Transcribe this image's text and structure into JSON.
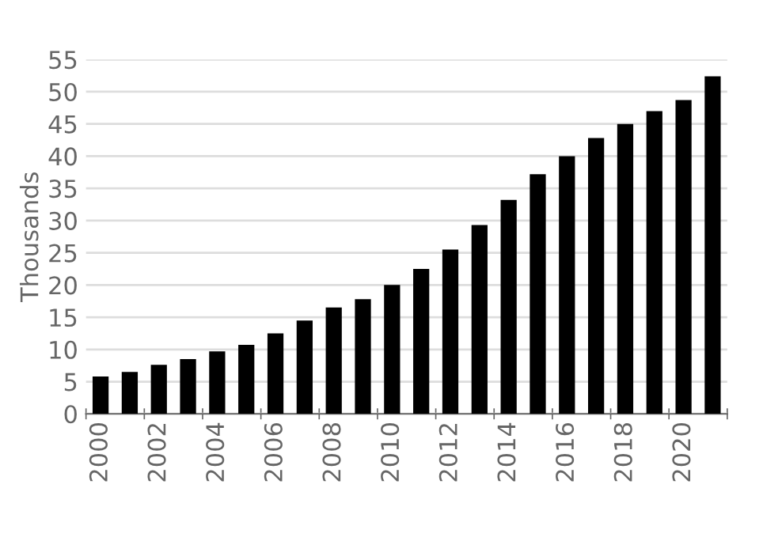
{
  "chart_data": {
    "type": "bar",
    "ylabel": "Thousands",
    "categories": [
      "2000",
      null,
      "2002",
      null,
      "2004",
      null,
      "2006",
      null,
      "2008",
      null,
      "2010",
      null,
      "2012",
      null,
      "2014",
      null,
      "2016",
      null,
      "2018",
      null,
      "2020",
      null
    ],
    "values": [
      5.8,
      6.5,
      7.6,
      8.5,
      9.7,
      10.7,
      12.5,
      14.5,
      16.5,
      17.8,
      20,
      22.5,
      25.5,
      29.3,
      33.2,
      37.2,
      40,
      42.8,
      45,
      47,
      48.7,
      52.4
    ],
    "color": "#000000",
    "ylim": [
      0,
      55
    ],
    "yticks": [
      0,
      5,
      10,
      15,
      20,
      25,
      30,
      35,
      40,
      45,
      50,
      55
    ],
    "grid": "y",
    "legend": false
  }
}
